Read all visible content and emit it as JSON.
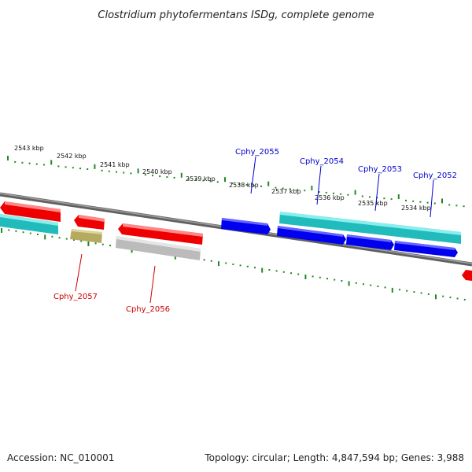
{
  "title": "Clostridium phytofermentans ISDg, complete genome",
  "footer": {
    "accession": "Accession: NC_010001",
    "summary": "Topology: circular; Length: 4,847,594 bp; Genes: 3,988"
  },
  "ruler_labels": [
    "2543 kbp",
    "2542 kbp",
    "2541 kbp",
    "2540 kbp",
    "2539 kbp",
    "2538 kbp",
    "2537 kbp",
    "2536 kbp",
    "2535 kbp",
    "2534 kbp"
  ],
  "gene_labels": {
    "cphy_2055": "Cphy_2055",
    "cphy_2054": "Cphy_2054",
    "cphy_2053": "Cphy_2053",
    "cphy_2052": "Cphy_2052",
    "cphy_2057": "Cphy_2057",
    "cphy_2056": "Cphy_2056"
  },
  "colors": {
    "forward_cds": "#0000ee",
    "reverse_cds": "#ee0000",
    "rna_or_product": "#22cccc",
    "pseudo": "#b5aa60",
    "other": "#bbbbbb",
    "backbone": "#808080",
    "ticks": "#228822",
    "forward_label": "#0000cc",
    "reverse_label": "#cc0000"
  }
}
